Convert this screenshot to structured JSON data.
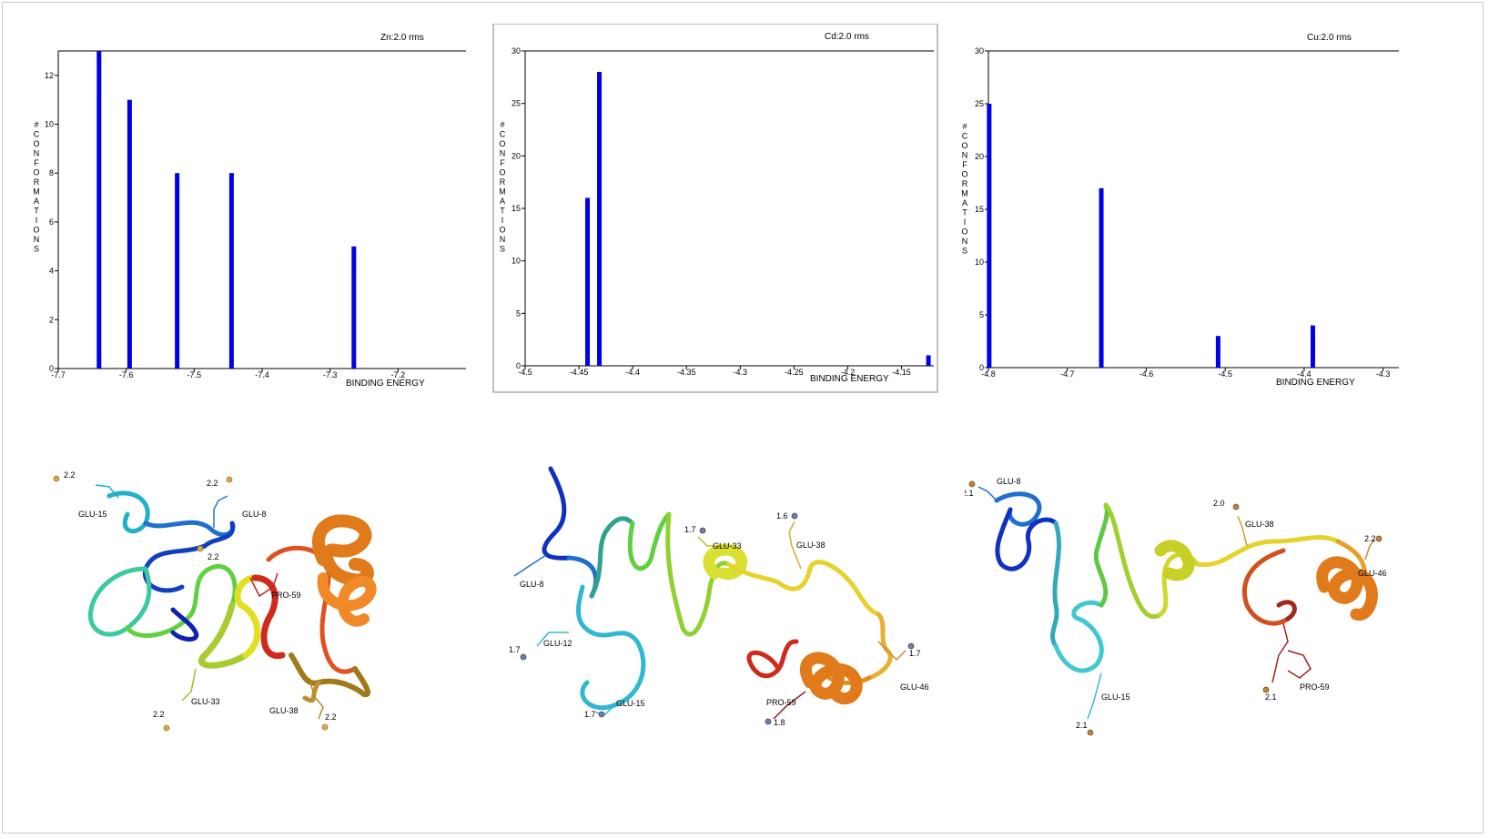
{
  "colors": {
    "bar": "#0000e6",
    "axis": "#000000",
    "frame": "#c8c8c8"
  },
  "chart_data": [
    {
      "type": "bar",
      "title": "Zn:2.0 rms",
      "xlabel": "BINDING ENERGY",
      "ylabel": "#CONFORMATIONS",
      "xlim": [
        -7.7,
        -7.1
      ],
      "ylim": [
        0,
        13
      ],
      "xticks": [
        -7.7,
        -7.6,
        -7.5,
        -7.4,
        -7.3,
        -7.2
      ],
      "xtick_labels": [
        "-7.7",
        "-7.6",
        "-7.5",
        "-7.4",
        "-7.3",
        "-7.2"
      ],
      "yticks": [
        0,
        2,
        4,
        6,
        8,
        10,
        12
      ],
      "ytick_labels": [
        "0",
        "2",
        "4",
        "6",
        "8",
        "10",
        "12"
      ],
      "x": [
        -7.64,
        -7.595,
        -7.525,
        -7.445,
        -7.265
      ],
      "values": [
        13,
        11,
        8,
        8,
        5
      ]
    },
    {
      "type": "bar",
      "title": "Cd:2.0 rms",
      "xlabel": "BINDING ENERGY",
      "ylabel": "#CONFORMATIONS",
      "xlim": [
        -4.5,
        -4.12
      ],
      "ylim": [
        0,
        30
      ],
      "xticks": [
        -4.5,
        -4.45,
        -4.4,
        -4.35,
        -4.3,
        -4.25,
        -4.2,
        -4.15
      ],
      "xtick_labels": [
        "-4.5",
        "-4.45",
        "-4.4",
        "-4.35",
        "-4.3",
        "-4.25",
        "-4.2",
        "-4.15"
      ],
      "yticks": [
        0,
        5,
        10,
        15,
        20,
        25,
        30
      ],
      "ytick_labels": [
        "0",
        "5",
        "10",
        "15",
        "20",
        "25",
        "30"
      ],
      "x": [
        -4.442,
        -4.431,
        -4.125
      ],
      "values": [
        16,
        28,
        1
      ]
    },
    {
      "type": "bar",
      "title": "Cu:2.0 rms",
      "xlabel": "BINDING ENERGY",
      "ylabel": "#CONFORMATIONS",
      "xlim": [
        -4.8,
        -4.28
      ],
      "ylim": [
        0,
        30
      ],
      "xticks": [
        -4.8,
        -4.7,
        -4.6,
        -4.5,
        -4.4,
        -4.3
      ],
      "xtick_labels": [
        "-4.8",
        "-4.7",
        "-4.6",
        "-4.5",
        "-4.4",
        "-4.3"
      ],
      "yticks": [
        0,
        5,
        10,
        15,
        20,
        25,
        30
      ],
      "ytick_labels": [
        "0",
        "5",
        "10",
        "15",
        "20",
        "25",
        "30"
      ],
      "x": [
        -4.799,
        -4.657,
        -4.509,
        -4.389
      ],
      "values": [
        25,
        17,
        3,
        4
      ]
    }
  ],
  "structures": [
    {
      "labels": [
        "GLU-15",
        "GLU-8",
        "PRO-59",
        "GLU-33",
        "GLU-38"
      ],
      "distances": [
        "2.2",
        "2.2",
        "2.2",
        "2.2",
        "2.2"
      ]
    },
    {
      "labels": [
        "GLU-8",
        "GLU-33",
        "GLU-38",
        "GLU-12",
        "GLU-15",
        "GLU-46",
        "PRO-59"
      ],
      "distances": [
        "1.7",
        "1.6",
        "1.7",
        "1.7",
        "1.7",
        "1.8"
      ]
    },
    {
      "labels": [
        "GLU-8",
        "GLU-38",
        "GLU-46",
        "GLU-15",
        "PRO-59"
      ],
      "distances": [
        "2.1",
        "2.0",
        "2.2",
        "2.1",
        "2.1"
      ]
    }
  ]
}
